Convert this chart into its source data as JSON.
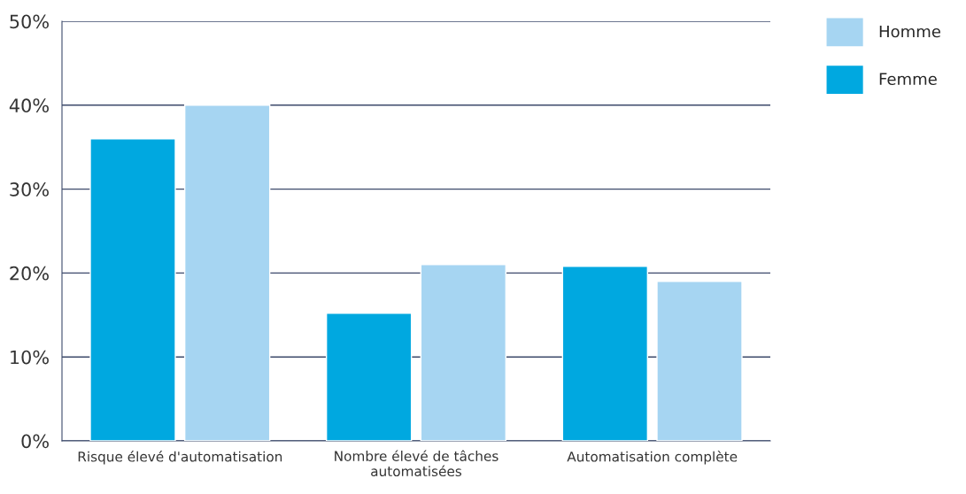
{
  "chart_data": {
    "type": "bar",
    "categories": [
      "Risque élevé d'automatisation",
      "Nombre élevé de tâches\nautomatisées",
      "Automatisation complète"
    ],
    "series": [
      {
        "name": "Femme",
        "color": "#00a8e0",
        "values": [
          36.0,
          15.2,
          20.8
        ]
      },
      {
        "name": "Homme",
        "color": "#a6d5f2",
        "values": [
          40.0,
          21.0,
          19.0
        ]
      }
    ],
    "ylim": [
      0,
      50
    ],
    "yticks": [
      {
        "value": 0,
        "label": "0%"
      },
      {
        "value": 10,
        "label": "10%"
      },
      {
        "value": 20,
        "label": "20%"
      },
      {
        "value": 30,
        "label": "30%"
      },
      {
        "value": 40,
        "label": "40%"
      },
      {
        "value": 50,
        "label": "50%"
      }
    ],
    "grid": "y",
    "legend": "top right"
  }
}
